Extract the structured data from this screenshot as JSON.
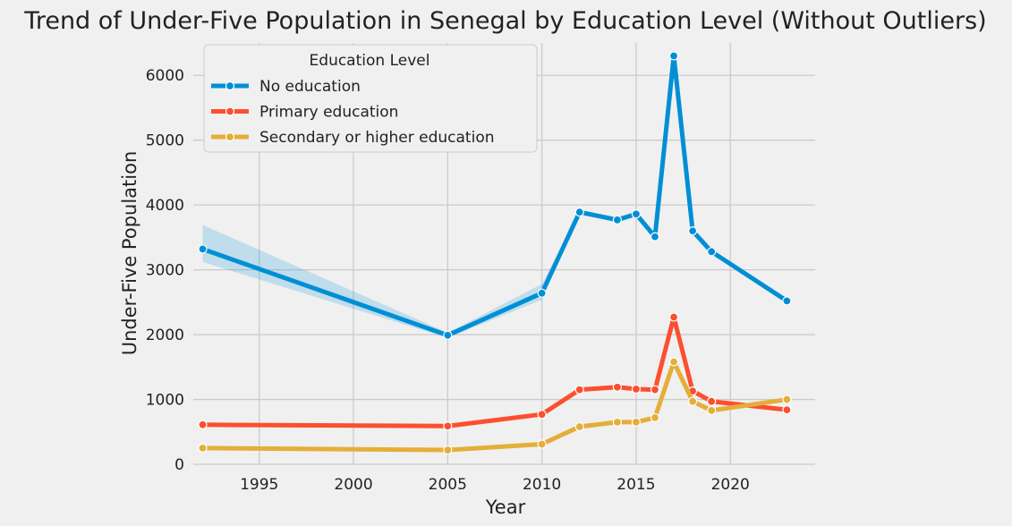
{
  "chart_data": {
    "type": "line",
    "title": "Trend of Under-Five Population in Senegal by Education Level (Without Outliers)",
    "xlabel": "Year",
    "ylabel": "Under-Five Population",
    "xlim": [
      1991.5,
      2024.5
    ],
    "ylim": [
      0,
      6500
    ],
    "xticks": [
      1995,
      2000,
      2005,
      2010,
      2015,
      2020
    ],
    "yticks": [
      0,
      1000,
      2000,
      3000,
      4000,
      5000,
      6000
    ],
    "grid": true,
    "legend": {
      "title": "Education Level",
      "placement": "top-left"
    },
    "series": [
      {
        "name": "No education",
        "color": "#008fd5",
        "x": [
          1992,
          2005,
          2010,
          2012,
          2014,
          2015,
          2016,
          2017,
          2018,
          2019,
          2023
        ],
        "y": [
          3320,
          1990,
          2640,
          3890,
          3770,
          3860,
          3510,
          6300,
          3600,
          3280,
          2520
        ],
        "ci_lower": [
          3120,
          1950,
          2540,
          3890,
          3770,
          3860,
          3510,
          6300,
          3600,
          3280,
          2520
        ],
        "ci_upper": [
          3690,
          2030,
          2780,
          3890,
          3770,
          3860,
          3510,
          6300,
          3600,
          3280,
          2520
        ]
      },
      {
        "name": "Primary education",
        "color": "#fc4f30",
        "x": [
          1992,
          2005,
          2010,
          2012,
          2014,
          2015,
          2016,
          2017,
          2018,
          2019,
          2023
        ],
        "y": [
          610,
          590,
          770,
          1150,
          1190,
          1160,
          1150,
          2270,
          1130,
          970,
          840
        ]
      },
      {
        "name": "Secondary or higher education",
        "color": "#e5ae38",
        "x": [
          1992,
          2005,
          2010,
          2012,
          2014,
          2015,
          2016,
          2017,
          2018,
          2019,
          2023
        ],
        "y": [
          250,
          220,
          310,
          580,
          650,
          650,
          720,
          1580,
          970,
          830,
          1000
        ]
      }
    ]
  }
}
